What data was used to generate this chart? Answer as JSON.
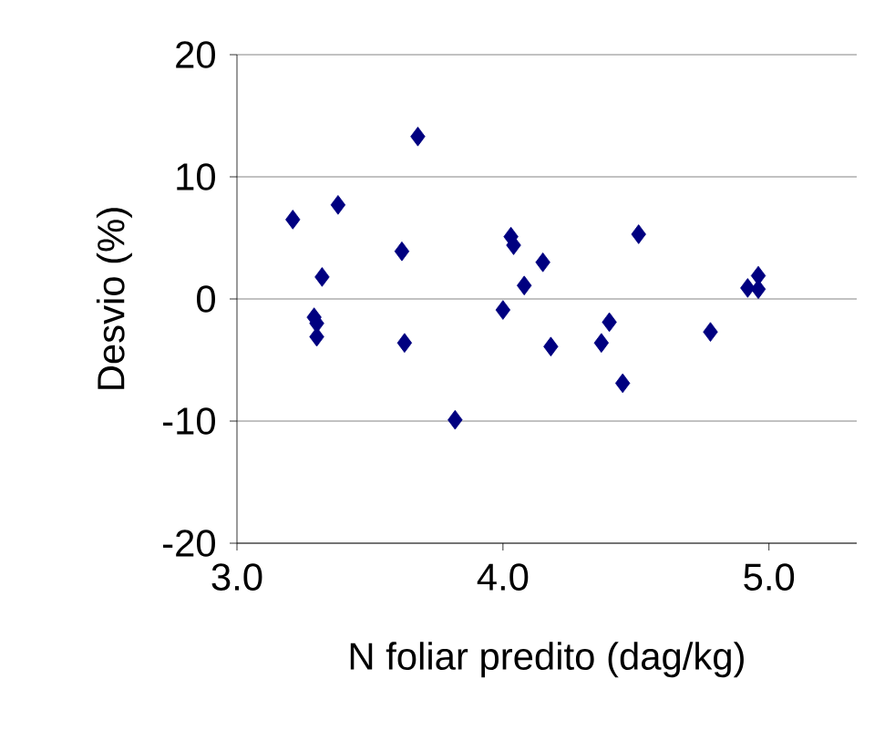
{
  "chart_data": {
    "type": "scatter",
    "xlabel": "N foliar predito (dag/kg)",
    "ylabel": "Desvio (%)",
    "xlim": [
      3.0,
      5.33
    ],
    "ylim": [
      -20,
      20
    ],
    "xticks": [
      {
        "value": 3.0,
        "label": "3.0"
      },
      {
        "value": 4.0,
        "label": "4.0"
      },
      {
        "value": 5.0,
        "label": "5.0"
      }
    ],
    "yticks": [
      -20,
      -10,
      0,
      10,
      20
    ],
    "grid": "y",
    "marker": "diamond",
    "series": [
      {
        "color": "#000080",
        "x": [
          3.21,
          3.38,
          3.32,
          3.29,
          3.3,
          3.3,
          3.62,
          3.63,
          3.68,
          3.82,
          4.03,
          4.04,
          4.15,
          4.08,
          4.0,
          4.18,
          4.51,
          4.4,
          4.37,
          4.45,
          4.78,
          4.92,
          4.96,
          4.96
        ],
        "values": [
          6.5,
          7.7,
          1.8,
          -1.5,
          -2.0,
          -3.1,
          3.9,
          -3.6,
          13.3,
          -9.9,
          5.1,
          4.4,
          3.0,
          1.1,
          -0.9,
          -3.9,
          5.3,
          -1.9,
          -3.6,
          -6.9,
          -2.7,
          0.9,
          1.9,
          0.8
        ]
      }
    ]
  }
}
